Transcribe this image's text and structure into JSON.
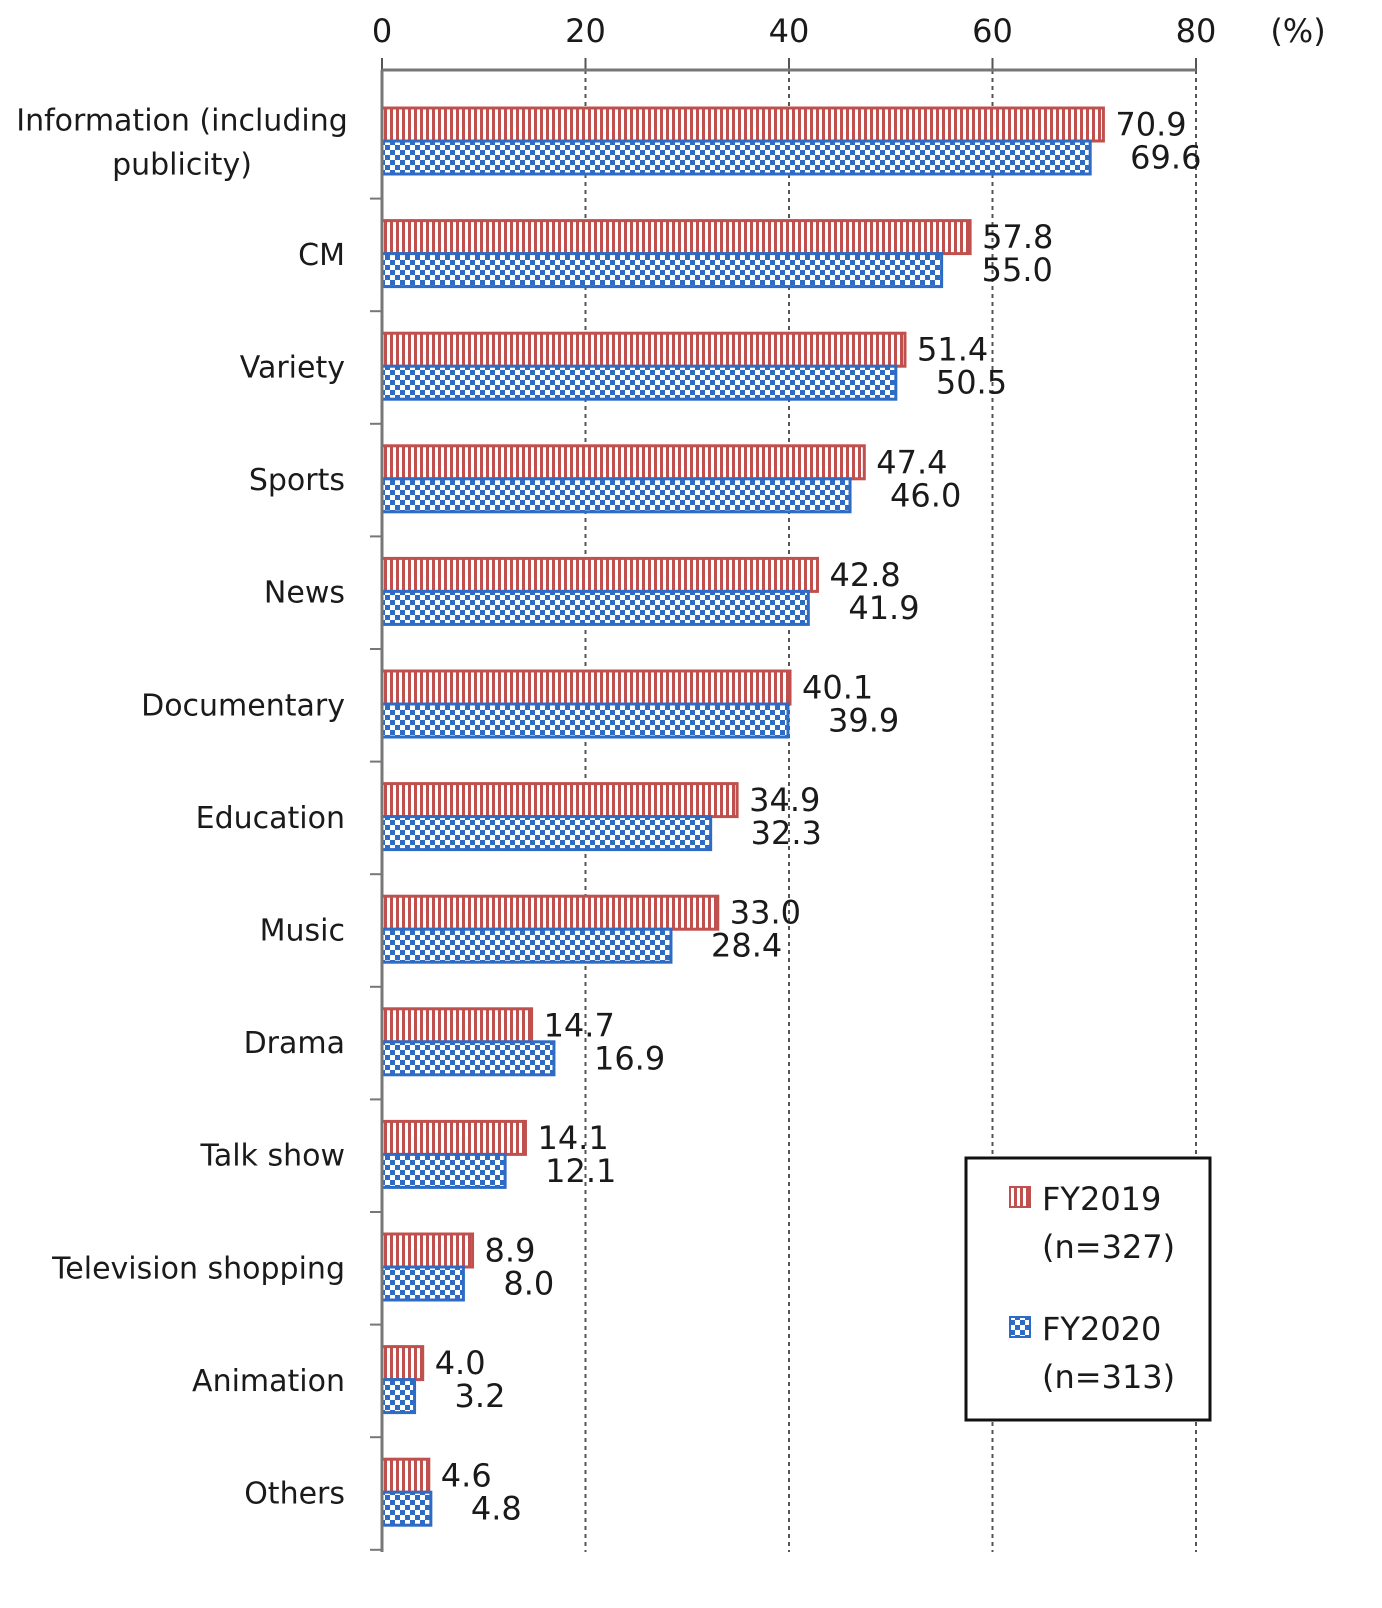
{
  "chart_data": {
    "type": "bar",
    "orientation": "horizontal",
    "unit_label": "(%)",
    "xlim": [
      0,
      80
    ],
    "xticks": [
      0,
      20,
      40,
      60,
      80
    ],
    "grid": "vertical dashed",
    "axis_position": "top",
    "categories": [
      [
        "Information (including",
        "publicity)"
      ],
      [
        "CM"
      ],
      [
        "Variety"
      ],
      [
        "Sports"
      ],
      [
        "News"
      ],
      [
        "Documentary"
      ],
      [
        "Education"
      ],
      [
        "Music"
      ],
      [
        "Drama"
      ],
      [
        "Talk show"
      ],
      [
        "Television shopping"
      ],
      [
        "Animation"
      ],
      [
        "Others"
      ]
    ],
    "series": [
      {
        "name": "FY2019",
        "legend_sub": "(n=327)",
        "color": "#c0504d",
        "pattern": "vertical-stripes",
        "values": [
          70.9,
          57.8,
          51.4,
          47.4,
          42.8,
          40.1,
          34.9,
          33.0,
          14.7,
          14.1,
          8.9,
          4.0,
          4.6
        ],
        "labels": [
          "70.9",
          "57.8",
          "51.4",
          "47.4",
          "42.8",
          "40.1",
          "34.9",
          "33.0",
          "14.7",
          "14.1",
          "8.9",
          "4.0",
          "4.6"
        ]
      },
      {
        "name": "FY2020",
        "legend_sub": "(n=313)",
        "color": "#2e6bc4",
        "pattern": "checkerboard",
        "values": [
          69.6,
          55.0,
          50.5,
          46.0,
          41.9,
          39.9,
          32.3,
          28.4,
          16.9,
          12.1,
          8.0,
          3.2,
          4.8
        ],
        "labels": [
          "69.6",
          "55.0",
          "50.5",
          "46.0",
          "41.9",
          "39.9",
          "32.3",
          "28.4",
          "16.9",
          "12.1",
          "8.0",
          "3.2",
          "4.8"
        ]
      }
    ],
    "legend": {
      "placement": "bottom-right"
    }
  }
}
